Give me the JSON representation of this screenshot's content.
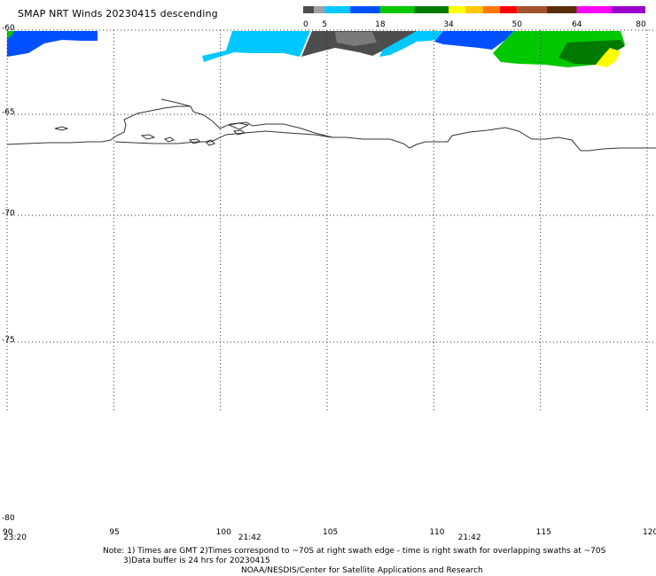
{
  "header": {
    "title": "SMAP NRT Winds  20230415  descending"
  },
  "colorbar": {
    "labels": [
      "0",
      "5",
      "18",
      "34",
      "50",
      "64",
      "80"
    ],
    "segments": [
      {
        "from": 0,
        "to": 2.5,
        "color": "#4d4d4d"
      },
      {
        "from": 2.5,
        "to": 5,
        "color": "#a0a0a0"
      },
      {
        "from": 5,
        "to": 11,
        "color": "#00c8ff"
      },
      {
        "from": 11,
        "to": 18,
        "color": "#0050ff"
      },
      {
        "from": 18,
        "to": 26,
        "color": "#00c800"
      },
      {
        "from": 26,
        "to": 34,
        "color": "#007a00"
      },
      {
        "from": 34,
        "to": 38,
        "color": "#ffff00"
      },
      {
        "from": 38,
        "to": 42,
        "color": "#ffc800"
      },
      {
        "from": 42,
        "to": 46,
        "color": "#ff7800"
      },
      {
        "from": 46,
        "to": 50,
        "color": "#ff0000"
      },
      {
        "from": 50,
        "to": 57,
        "color": "#a0522d"
      },
      {
        "from": 57,
        "to": 64,
        "color": "#5a2d0a"
      },
      {
        "from": 64,
        "to": 72,
        "color": "#ff00ff"
      },
      {
        "from": 72,
        "to": 80,
        "color": "#9900cc"
      }
    ]
  },
  "map": {
    "lat_ticks": [
      "-60",
      "-65",
      "-70",
      "-75",
      "-80"
    ],
    "lon_ticks": [
      "90",
      "95",
      "100",
      "105",
      "110",
      "115",
      "120"
    ],
    "lon_range": [
      90,
      120
    ],
    "lat_range": [
      -60,
      -80
    ],
    "time_labels": [
      {
        "text": "23:20",
        "lon": 90
      },
      {
        "text": "21:42",
        "lon": 101
      },
      {
        "text": "21:42",
        "lon": 111.3
      }
    ]
  },
  "notes": {
    "line1": "Note: 1) Times are GMT 2)Times correspond to ~70S at right swath edge - time is right swath for overlapping swaths at ~70S",
    "line2": "3)Data buffer is 24 hrs for 20230415",
    "line3": "NOAA/NESDIS/Center for Satellite Applications and Research"
  }
}
